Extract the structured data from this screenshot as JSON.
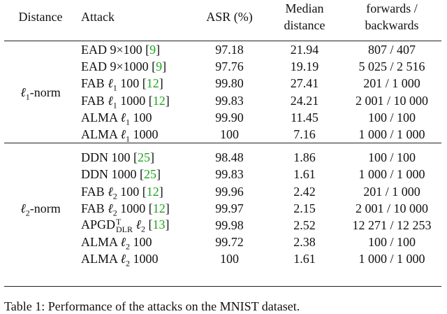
{
  "header": {
    "distance": "Distance",
    "attack": "Attack",
    "asr": "ASR (%)",
    "median_line1": "Median",
    "median_line2": "distance",
    "fb_line1": "forwards /",
    "fb_line2": "backwards"
  },
  "groups": [
    {
      "label": "ℓ1-norm",
      "label_main": "ℓ",
      "label_sub": "1",
      "label_suffix": "-norm",
      "rows": [
        {
          "name": "EAD 9×100",
          "cite": "9",
          "asr": "97.18",
          "median": "21.94",
          "fb": "807 / 407"
        },
        {
          "name": "EAD 9×1000",
          "cite": "9",
          "asr": "97.76",
          "median": "19.19",
          "fb": "5 025 / 2 516"
        },
        {
          "name_pre": "FAB ",
          "sym": "ℓ",
          "sub": "1",
          "name_post": " 100",
          "cite": "12",
          "asr": "99.80",
          "median": "27.41",
          "fb": "201 / 1 000"
        },
        {
          "name_pre": "FAB ",
          "sym": "ℓ",
          "sub": "1",
          "name_post": " 1000",
          "cite": "12",
          "asr": "99.83",
          "median": "24.21",
          "fb": "2 001 / 10 000"
        },
        {
          "name_pre": "ALMA ",
          "sym": "ℓ",
          "sub": "1",
          "name_post": " 100",
          "asr": "99.90",
          "median": "11.45",
          "fb": "100 / 100"
        },
        {
          "name_pre": "ALMA ",
          "sym": "ℓ",
          "sub": "1",
          "name_post": " 1000",
          "asr": "100",
          "median": "7.16",
          "fb": "1 000 / 1 000"
        }
      ]
    },
    {
      "label": "ℓ2-norm",
      "label_main": "ℓ",
      "label_sub": "2",
      "label_suffix": "-norm",
      "rows": [
        {
          "name": "DDN 100",
          "cite": "25",
          "asr": "98.48",
          "median": "1.86",
          "fb": "100 / 100"
        },
        {
          "name": "DDN 1000",
          "cite": "25",
          "asr": "99.83",
          "median": "1.61",
          "fb": "1 000 / 1 000"
        },
        {
          "name_pre": "FAB ",
          "sym": "ℓ",
          "sub": "2",
          "name_post": " 100",
          "cite": "12",
          "asr": "99.96",
          "median": "2.42",
          "fb": "201 / 1 000"
        },
        {
          "name_pre": "FAB ",
          "sym": "ℓ",
          "sub": "2",
          "name_post": " 1000",
          "cite": "12",
          "asr": "99.97",
          "median": "2.15",
          "fb": "2 001 / 10 000"
        },
        {
          "apgd": true,
          "apgd_base": "APGD",
          "apgd_sup": "T",
          "apgd_sub": "DLR",
          "sym": "ℓ",
          "sub": "2",
          "cite": "13",
          "asr": "99.98",
          "median": "2.52",
          "fb": "12 271 / 12 253"
        },
        {
          "name_pre": "ALMA ",
          "sym": "ℓ",
          "sub": "2",
          "name_post": " 100",
          "asr": "99.72",
          "median": "2.38",
          "fb": "100 / 100"
        },
        {
          "name_pre": "ALMA ",
          "sym": "ℓ",
          "sub": "2",
          "name_post": " 1000",
          "asr": "100",
          "median": "1.61",
          "fb": "1 000 / 1 000"
        }
      ]
    }
  ],
  "caption": "Table 1: Performance of the attacks on the MNIST dataset."
}
